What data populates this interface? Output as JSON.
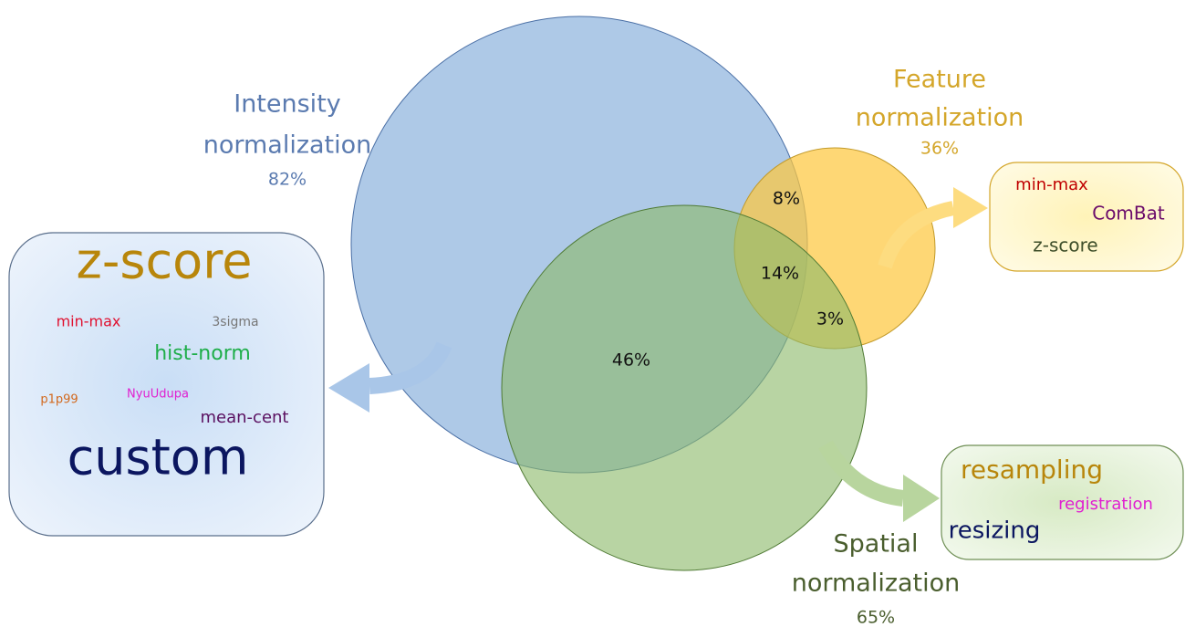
{
  "sets": [
    {
      "name": "intensity",
      "label_lines": [
        "Intensity",
        "normalization"
      ],
      "share": "82%"
    },
    {
      "name": "feature",
      "label_lines": [
        "Feature",
        "normalization"
      ],
      "share": "36%"
    },
    {
      "name": "spatial",
      "label_lines": [
        "Spatial",
        "normalization"
      ],
      "share": "65%"
    }
  ],
  "intersections": [
    {
      "sets": "intensity-feature",
      "label": "8%"
    },
    {
      "sets": "intensity-feature-spatial",
      "label": "14%"
    },
    {
      "sets": "feature-spatial",
      "label": "3%"
    },
    {
      "sets": "intensity-spatial",
      "label": "46%"
    }
  ],
  "methods": {
    "intensity": [
      "z-score",
      "min-max",
      "3sigma",
      "hist-norm",
      "p1p99",
      "NyuUdupa",
      "mean-cent",
      "custom"
    ],
    "feature": [
      "min-max",
      "ComBat",
      "z-score"
    ],
    "spatial": [
      "resampling",
      "registration",
      "resizing"
    ]
  }
}
